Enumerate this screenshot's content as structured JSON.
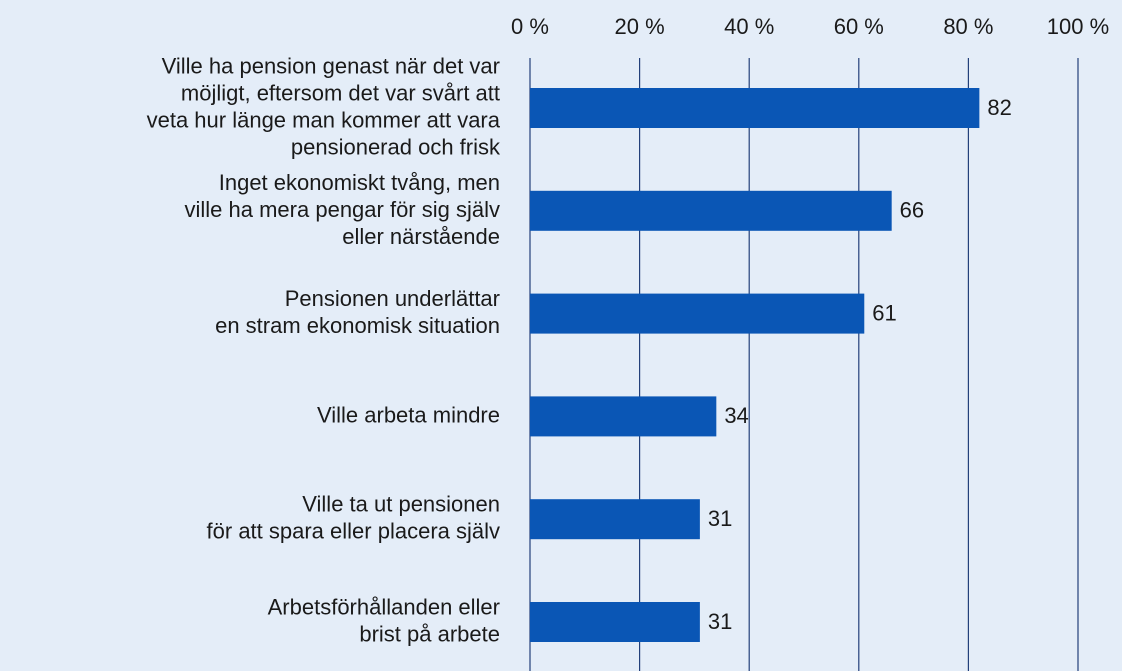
{
  "chart_data": {
    "type": "bar",
    "orientation": "horizontal",
    "categories": [
      "Ville ha pension genast när det var\nmöjligt, eftersom det var svårt att\nveta hur länge man kommer att vara\npensionerad och frisk",
      "Inget ekonomiskt tvång, men\nville ha mera pengar för sig själv\neller närstående",
      "Pensionen underlättar\nen stram ekonomisk situation",
      "Ville arbeta mindre",
      "Ville ta ut pensionen\nför att spara eller placera själv",
      "Arbetsförhållanden eller\nbrist på arbete"
    ],
    "values": [
      82,
      66,
      61,
      34,
      31,
      31
    ],
    "color": "#0a56b5",
    "xlim": [
      0,
      100
    ],
    "xticks": [
      {
        "value": 0,
        "label": "0 %"
      },
      {
        "value": 20,
        "label": "20 %"
      },
      {
        "value": 40,
        "label": "40 %"
      },
      {
        "value": 60,
        "label": "60 %"
      },
      {
        "value": 80,
        "label": "80 %"
      },
      {
        "value": 100,
        "label": "100 %"
      }
    ],
    "grid": true
  }
}
